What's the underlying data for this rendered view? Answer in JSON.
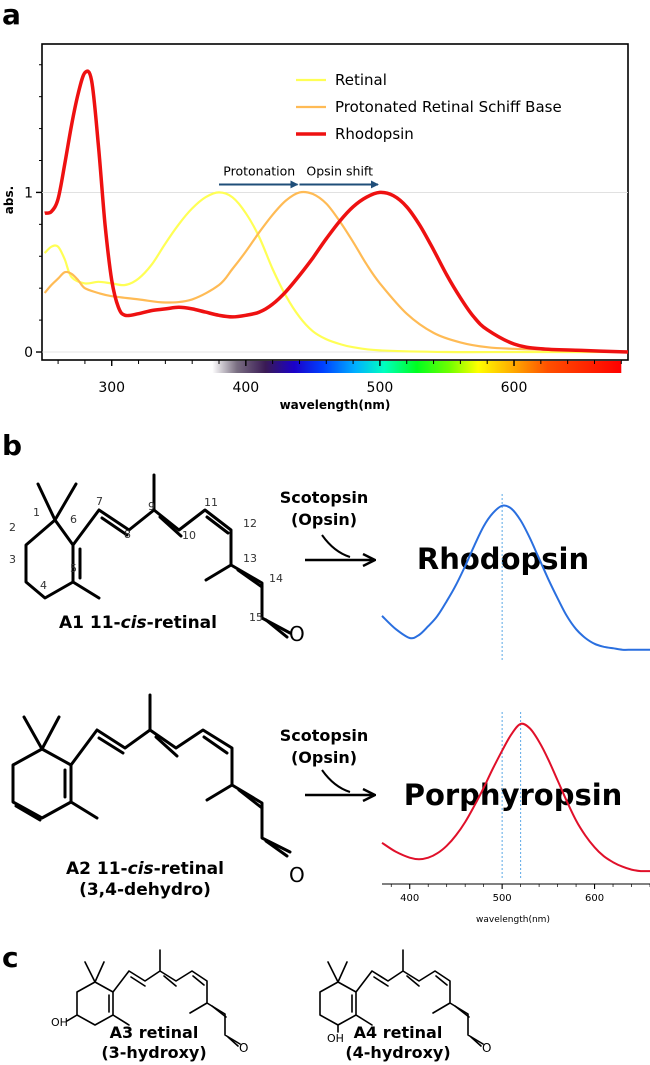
{
  "panel_labels": [
    "a",
    "b",
    "c"
  ],
  "chart_data": [
    {
      "type": "line",
      "title": "",
      "xlabel": "wavelength(nm)",
      "ylabel": "abs.",
      "xlim": [
        248,
        685
      ],
      "ylim": [
        -0.05,
        1.93
      ],
      "x_ticks": [
        300,
        400,
        500,
        600
      ],
      "x_tick_labels": [
        "300",
        "400",
        "500",
        "600"
      ],
      "y_ticks": [
        0,
        1
      ],
      "y_tick_labels": [
        "0",
        "1"
      ],
      "legend_position": "top-right",
      "spectrum_colorbar": {
        "from_nm": 380,
        "to_nm": 680
      },
      "annotations": [
        {
          "text": "Protonation",
          "arrow_from_x": 380,
          "arrow_to_x": 440,
          "y": 1.05
        },
        {
          "text": "Opsin shift",
          "arrow_from_x": 440,
          "arrow_to_x": 500,
          "y": 1.05
        }
      ],
      "series": [
        {
          "name": "Retinal",
          "color": "#ffff55",
          "x": [
            250,
            255,
            260,
            265,
            270,
            280,
            290,
            300,
            310,
            320,
            330,
            340,
            350,
            360,
            370,
            380,
            390,
            400,
            410,
            420,
            430,
            440,
            450,
            460,
            470,
            480,
            500,
            550,
            600,
            650,
            685
          ],
          "y": [
            0.62,
            0.66,
            0.66,
            0.58,
            0.47,
            0.43,
            0.44,
            0.43,
            0.42,
            0.46,
            0.55,
            0.68,
            0.8,
            0.9,
            0.97,
            1.0,
            0.97,
            0.87,
            0.72,
            0.52,
            0.35,
            0.22,
            0.13,
            0.08,
            0.05,
            0.03,
            0.01,
            0.0,
            0.0,
            0.0,
            0.0
          ]
        },
        {
          "name": "Protonated Retinal Schiff Base",
          "color": "#ffbb55",
          "x": [
            250,
            255,
            260,
            265,
            270,
            275,
            280,
            290,
            300,
            320,
            340,
            360,
            380,
            390,
            400,
            410,
            420,
            430,
            440,
            450,
            460,
            470,
            480,
            490,
            500,
            520,
            540,
            560,
            580,
            600,
            650,
            685
          ],
          "y": [
            0.37,
            0.42,
            0.46,
            0.5,
            0.49,
            0.45,
            0.4,
            0.37,
            0.35,
            0.33,
            0.31,
            0.33,
            0.42,
            0.52,
            0.63,
            0.75,
            0.86,
            0.95,
            1.0,
            0.99,
            0.93,
            0.82,
            0.69,
            0.55,
            0.43,
            0.24,
            0.12,
            0.06,
            0.03,
            0.02,
            0.01,
            0.0
          ]
        },
        {
          "name": "Rhodopsin",
          "color": "#ee1111",
          "x": [
            250,
            255,
            260,
            265,
            270,
            275,
            280,
            285,
            290,
            295,
            300,
            305,
            310,
            320,
            330,
            340,
            350,
            360,
            370,
            380,
            390,
            400,
            410,
            420,
            430,
            440,
            450,
            460,
            470,
            480,
            490,
            500,
            510,
            520,
            530,
            540,
            550,
            560,
            570,
            580,
            600,
            620,
            650,
            685
          ],
          "y": [
            0.87,
            0.88,
            0.96,
            1.18,
            1.42,
            1.62,
            1.75,
            1.7,
            1.3,
            0.8,
            0.45,
            0.28,
            0.23,
            0.24,
            0.26,
            0.27,
            0.28,
            0.27,
            0.25,
            0.23,
            0.22,
            0.23,
            0.25,
            0.3,
            0.38,
            0.48,
            0.59,
            0.71,
            0.82,
            0.91,
            0.97,
            1.0,
            0.98,
            0.91,
            0.79,
            0.64,
            0.48,
            0.34,
            0.22,
            0.14,
            0.05,
            0.02,
            0.01,
            0.0
          ]
        }
      ]
    },
    {
      "type": "line",
      "title": "",
      "xlabel": "",
      "ylabel": "",
      "xlim": [
        370,
        660
      ],
      "ylim": [
        -0.05,
        1.08
      ],
      "marker_line_x": 500,
      "series": [
        {
          "name": "Rhodopsin",
          "color": "#2a6fdf",
          "x": [
            370,
            385,
            400,
            410,
            420,
            430,
            440,
            450,
            460,
            470,
            480,
            490,
            500,
            510,
            520,
            530,
            540,
            550,
            560,
            570,
            580,
            590,
            600,
            610,
            620,
            630,
            640,
            650,
            660
          ],
          "y": [
            0.25,
            0.16,
            0.1,
            0.12,
            0.18,
            0.25,
            0.35,
            0.46,
            0.59,
            0.73,
            0.86,
            0.95,
            1.0,
            0.98,
            0.9,
            0.78,
            0.64,
            0.5,
            0.37,
            0.25,
            0.16,
            0.1,
            0.06,
            0.04,
            0.03,
            0.02,
            0.02,
            0.02,
            0.02
          ]
        }
      ]
    },
    {
      "type": "line",
      "title": "",
      "xlabel": "wavelength(nm)",
      "ylabel": "",
      "xlim": [
        370,
        660
      ],
      "ylim": [
        -0.05,
        1.08
      ],
      "x_ticks": [
        400,
        500,
        600
      ],
      "x_tick_labels": [
        "400",
        "500",
        "600"
      ],
      "marker_lines_x": [
        500,
        520
      ],
      "series": [
        {
          "name": "Porphyropsin",
          "color": "#e0102a",
          "x": [
            370,
            385,
            400,
            410,
            420,
            430,
            440,
            450,
            460,
            470,
            480,
            490,
            500,
            510,
            520,
            530,
            540,
            550,
            560,
            570,
            580,
            590,
            600,
            610,
            620,
            630,
            640,
            650,
            660
          ],
          "y": [
            0.2,
            0.14,
            0.1,
            0.09,
            0.1,
            0.13,
            0.18,
            0.25,
            0.34,
            0.45,
            0.57,
            0.7,
            0.82,
            0.93,
            1.0,
            0.97,
            0.88,
            0.76,
            0.62,
            0.48,
            0.35,
            0.25,
            0.17,
            0.11,
            0.07,
            0.04,
            0.02,
            0.01,
            0.01
          ]
        }
      ]
    }
  ],
  "panel_b": {
    "a1_label_pre": "A1 11-",
    "a1_label_cis": "cis",
    "a1_label_post": "-retinal",
    "a2_label_pre": "A2 11-",
    "a2_label_cis": "cis",
    "a2_label_post": "-retinal",
    "a2_sublabel": "(3,4-dehydro)",
    "reagent_line1": "Scotopsin",
    "reagent_line2": "(Opsin)",
    "product_1": "Rhodopsin",
    "product_2": "Porphyropsin",
    "oxygen": "O",
    "atom_numbers": [
      "1",
      "2",
      "3",
      "4",
      "5",
      "6",
      "7",
      "8",
      "9",
      "10",
      "11",
      "12",
      "13",
      "14",
      "15"
    ]
  },
  "panel_c": {
    "a3_label": "A3 retinal",
    "a3_sublabel": "(3-hydroxy)",
    "a4_label": "A4 retinal",
    "a4_sublabel": "(4-hydroxy)",
    "hydroxyl": "OH",
    "oxygen": "O"
  }
}
